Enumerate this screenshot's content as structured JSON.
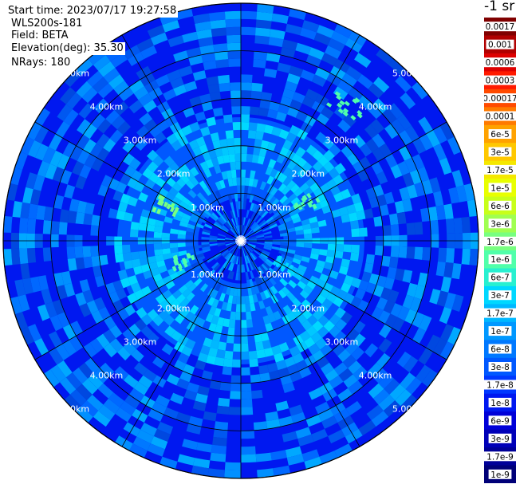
{
  "info": {
    "start_time": "Start time: 2023/07/17 19:27:58",
    "instrument": "WLS200s-181",
    "field": "Field: BETA",
    "elevation": "Elevation(deg): 35.30",
    "nrays": "NRays: 180"
  },
  "colorbar": {
    "unit": "-1 sr",
    "labels": [
      "0.0017",
      "0.001",
      "0.0006",
      "0.0003",
      "0.00017",
      "0.0001",
      "6e-5",
      "3e-5",
      "1.7e-5",
      "1e-5",
      "6e-6",
      "3e-6",
      "1.7e-6",
      "1e-6",
      "6e-7",
      "3e-7",
      "1.7e-7",
      "1e-7",
      "6e-8",
      "3e-8",
      "1.7e-8",
      "1e-8",
      "6e-9",
      "3e-9",
      "1.7e-9",
      "1e-9"
    ],
    "colors": [
      "#800000",
      "#b00000",
      "#dd0000",
      "#ff1a00",
      "#ff4a00",
      "#ff7a00",
      "#ffa200",
      "#ffc800",
      "#f5e800",
      "#e8ff00",
      "#c8ff1a",
      "#a0ff50",
      "#78ff80",
      "#50ffaa",
      "#28f0d0",
      "#00d8ff",
      "#00b8ff",
      "#0098ff",
      "#0078ff",
      "#0058ff",
      "#0038ff",
      "#0018f0",
      "#0000d8",
      "#0000b8",
      "#000098",
      "#000078"
    ]
  },
  "chart_data": {
    "type": "heatmap",
    "projection": "polar (PPI scan)",
    "field": "BETA",
    "elevation_deg": 35.3,
    "n_rays": 180,
    "range_rings_km": [
      1.0,
      2.0,
      3.0,
      4.0,
      5.0
    ],
    "ring_labels": [
      "1.00km",
      "2.00km",
      "3.00km",
      "4.00km",
      "5.00km"
    ],
    "max_range_km": 5.0,
    "azimuth_gridlines_deg": [
      0,
      30,
      60,
      90,
      120,
      150,
      180,
      210,
      240,
      270,
      300,
      330
    ],
    "background_level": "1e-8",
    "inner_level": "3e-8",
    "features": [
      {
        "azimuth_deg": 38,
        "range_km": 3.6,
        "level": "1e-6"
      },
      {
        "azimuth_deg": 60,
        "range_km": 1.6,
        "level": "1e-6"
      },
      {
        "azimuth_deg": 295,
        "range_km": 1.7,
        "level": "1.7e-6"
      },
      {
        "azimuth_deg": 250,
        "range_km": 1.3,
        "level": "1e-6"
      },
      {
        "azimuth_deg": 120,
        "range_km": 1.1,
        "level": "3e-7"
      }
    ]
  }
}
